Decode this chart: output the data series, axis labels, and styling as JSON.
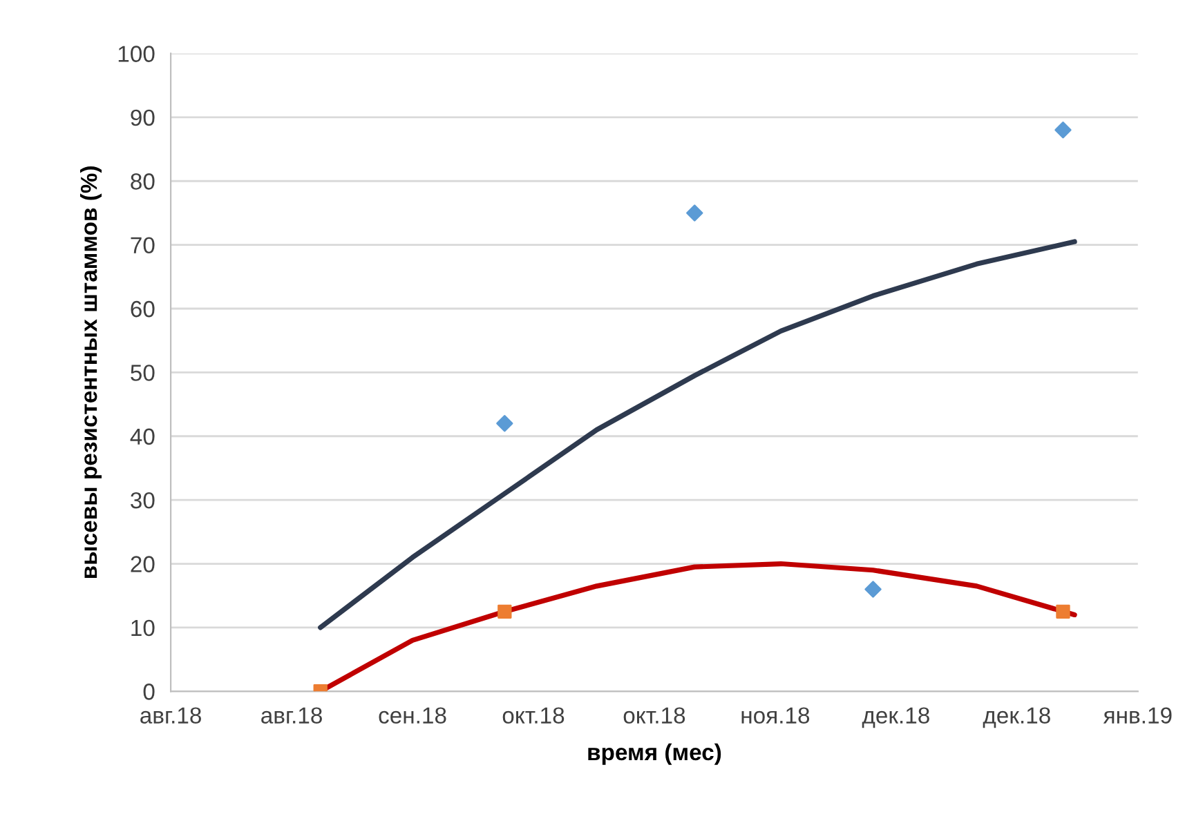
{
  "chart_data": {
    "type": "scatter",
    "xlabel": "время (мес)",
    "ylabel": "высевы резистентных штаммов (%)",
    "xlim": [
      "2018-08-01",
      "2019-01-16"
    ],
    "xticks": [
      {
        "value": "2018-08-01",
        "label": "авг.18"
      },
      {
        "value": "2018-08-22",
        "label": "авг.18"
      },
      {
        "value": "2018-09-12",
        "label": "сен.18"
      },
      {
        "value": "2018-10-03",
        "label": "окт.18"
      },
      {
        "value": "2018-10-24",
        "label": "окт.18"
      },
      {
        "value": "2018-11-14",
        "label": "ноя.18"
      },
      {
        "value": "2018-12-05",
        "label": "дек.18"
      },
      {
        "value": "2018-12-26",
        "label": "дек.18"
      },
      {
        "value": "2019-01-16",
        "label": "янв.19"
      }
    ],
    "ylim": [
      0,
      100
    ],
    "yticks": [
      0,
      10,
      20,
      30,
      40,
      50,
      60,
      70,
      80,
      90,
      100
    ],
    "grid": "y",
    "legend": false,
    "series": [
      {
        "type": "line",
        "color": "#2e3a4f",
        "marker": "none",
        "x": [
          "2018-08-27",
          "2018-09-12",
          "2018-09-28",
          "2018-10-14",
          "2018-10-31",
          "2018-11-15",
          "2018-12-01",
          "2018-12-19",
          "2019-01-05"
        ],
        "values": [
          10,
          21,
          31,
          41,
          49.5,
          56.5,
          62,
          67,
          70.5
        ]
      },
      {
        "type": "line",
        "color": "#c00000",
        "marker": "none",
        "x": [
          "2018-08-27",
          "2018-09-12",
          "2018-09-28",
          "2018-10-14",
          "2018-10-31",
          "2018-11-15",
          "2018-12-01",
          "2018-12-19",
          "2019-01-05"
        ],
        "values": [
          0,
          8,
          12.5,
          16.5,
          19.5,
          20,
          19,
          16.5,
          12
        ]
      },
      {
        "color": "#5b9bd5",
        "marker": "diamond",
        "x": [
          "2018-09-28",
          "2018-10-31",
          "2018-12-01",
          "2019-01-03"
        ],
        "values": [
          42,
          75,
          16,
          88
        ]
      },
      {
        "color": "#ed7d31",
        "marker": "square",
        "x": [
          "2018-08-27",
          "2018-09-28",
          "2019-01-03"
        ],
        "values": [
          0,
          12.5,
          12.5
        ]
      }
    ]
  }
}
